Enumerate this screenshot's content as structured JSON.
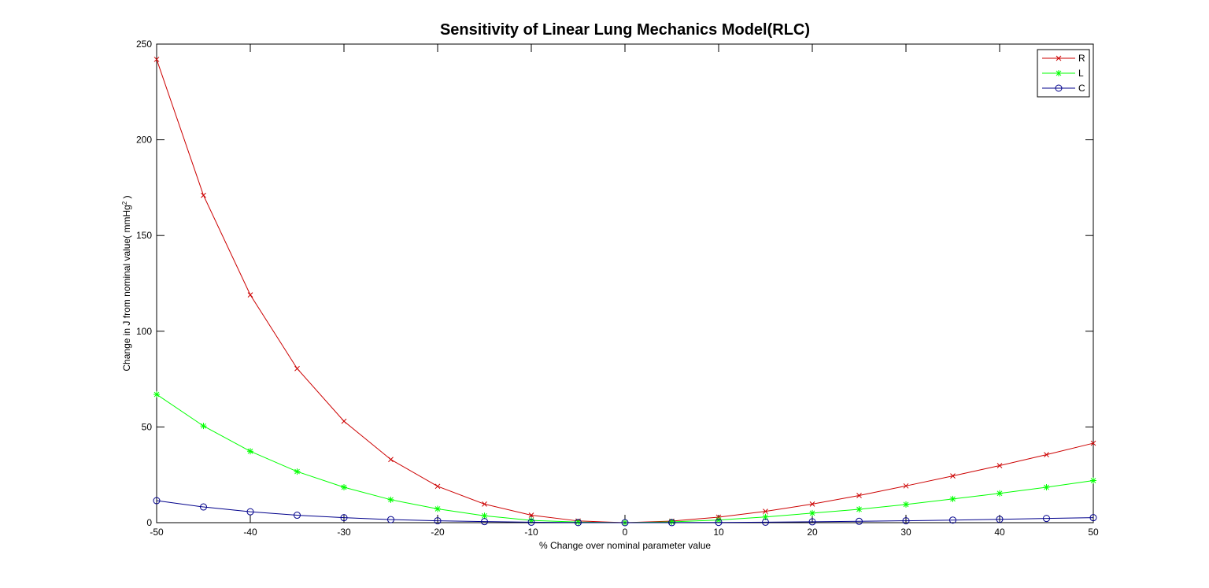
{
  "chart_data": {
    "type": "line",
    "title": "Sensitivity of Linear Lung Mechanics Model(RLC)",
    "xlabel": "% Change over nominal parameter value",
    "ylabel": "Change in J from nominal value( mmHg",
    "ylabel_sup": "2",
    "ylabel_suffix": " )",
    "xlim": [
      -50,
      50
    ],
    "ylim": [
      0,
      250
    ],
    "xticks": [
      -50,
      -40,
      -30,
      -20,
      -10,
      0,
      10,
      20,
      30,
      40,
      50
    ],
    "yticks": [
      0,
      50,
      100,
      150,
      200,
      250
    ],
    "x": [
      -50,
      -45,
      -40,
      -35,
      -30,
      -25,
      -20,
      -15,
      -10,
      -5,
      0,
      5,
      10,
      15,
      20,
      25,
      30,
      35,
      40,
      45,
      50
    ],
    "grid": false,
    "legend_position": "top-right",
    "series": [
      {
        "name": "R",
        "color": "#cc0000",
        "marker": "x",
        "values": [
          242,
          171,
          119,
          80.5,
          53,
          33,
          19,
          9.7,
          3.9,
          0.9,
          0,
          0.8,
          2.9,
          5.9,
          9.7,
          14.2,
          19.2,
          24.4,
          29.8,
          35.5,
          41.5
        ]
      },
      {
        "name": "L",
        "color": "#00ff00",
        "marker": "*",
        "values": [
          67,
          50.5,
          37.3,
          26.7,
          18.5,
          12,
          7.2,
          3.6,
          1.2,
          0.3,
          0,
          0.4,
          1.4,
          3,
          5,
          7,
          9.5,
          12.4,
          15.3,
          18.5,
          22
        ]
      },
      {
        "name": "C",
        "color": "#00008b",
        "marker": "o",
        "values": [
          11.5,
          8.2,
          5.7,
          3.9,
          2.6,
          1.6,
          1,
          0.55,
          0.25,
          0.06,
          0,
          0.04,
          0.12,
          0.25,
          0.45,
          0.7,
          1,
          1.35,
          1.75,
          2.2,
          2.6
        ]
      }
    ]
  }
}
